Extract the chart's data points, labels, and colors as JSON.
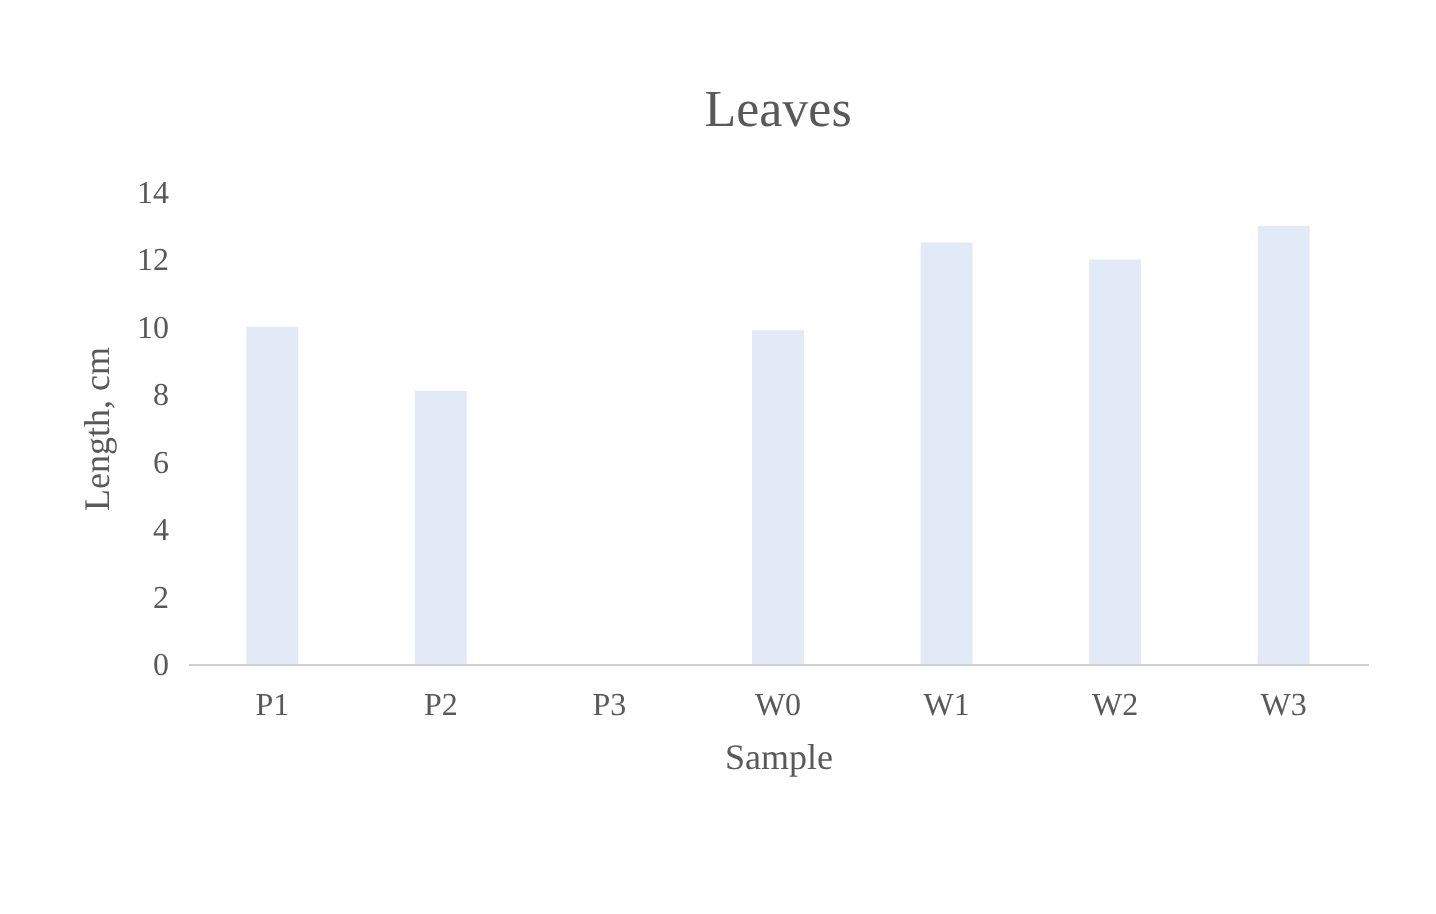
{
  "chart_data": {
    "type": "bar",
    "title": "Leaves",
    "xlabel": "Sample",
    "ylabel": "Length, cm",
    "categories": [
      "P1",
      "P2",
      "P3",
      "W0",
      "W1",
      "W2",
      "W3"
    ],
    "values": [
      10.0,
      8.1,
      0,
      9.9,
      12.5,
      12.0,
      13.0
    ],
    "color": "#e3eaf7",
    "ylim": [
      0,
      14
    ],
    "yticks": [
      0,
      2,
      4,
      6,
      8,
      10,
      12,
      14
    ],
    "grid": false
  }
}
